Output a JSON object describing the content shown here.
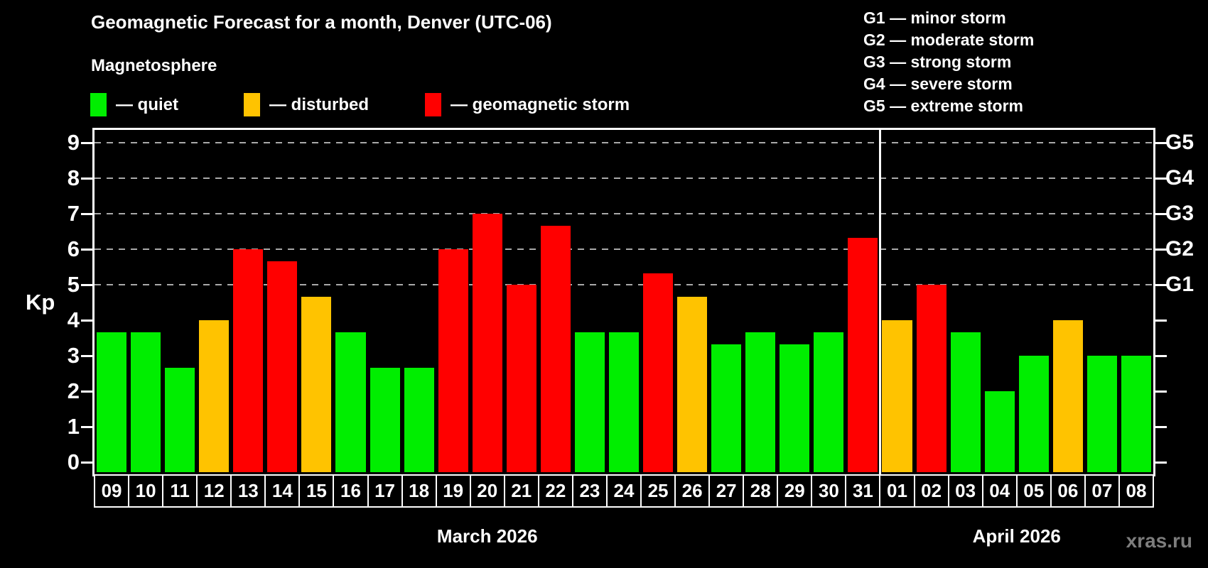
{
  "header": {
    "title": "Geomagnetic Forecast for a month, Denver (UTC-06)",
    "legend_title": "Magnetosphere",
    "legend_items": [
      {
        "label": "— quiet",
        "level": "quiet",
        "color": "#00ee00"
      },
      {
        "label": "— disturbed",
        "level": "disturbed",
        "color": "#ffc300"
      },
      {
        "label": "— geomagnetic storm",
        "level": "storm",
        "color": "#ff0000"
      }
    ],
    "g_scale_legend": [
      "G1 — minor storm",
      "G2 — moderate storm",
      "G3 — strong storm",
      "G4 — severe storm",
      "G5 — extreme storm"
    ]
  },
  "watermark": "xras.ru",
  "chart_data": {
    "type": "bar",
    "title": "Geomagnetic Forecast for a month, Denver (UTC-06)",
    "xlabel": "",
    "ylabel": "Kp",
    "ylim": [
      0,
      9
    ],
    "yticks": [
      0,
      1,
      2,
      3,
      4,
      5,
      6,
      7,
      8,
      9
    ],
    "grid_kp_levels": [
      5,
      6,
      7,
      8,
      9
    ],
    "grid_on": true,
    "legend_position": "top",
    "right_axis": [
      {
        "kp": 5,
        "label": "G1"
      },
      {
        "kp": 6,
        "label": "G2"
      },
      {
        "kp": 7,
        "label": "G3"
      },
      {
        "kp": 8,
        "label": "G4"
      },
      {
        "kp": 9,
        "label": "G5"
      }
    ],
    "level_colors": {
      "quiet": "#00ee00",
      "disturbed": "#ffc300",
      "storm": "#ff0000"
    },
    "months": [
      {
        "label": "March 2026",
        "start_index": 0,
        "days": 23
      },
      {
        "label": "April 2026",
        "start_index": 23,
        "days": 8
      }
    ],
    "days": [
      {
        "date": "09",
        "kp": 3.67,
        "level": "quiet"
      },
      {
        "date": "10",
        "kp": 3.67,
        "level": "quiet"
      },
      {
        "date": "11",
        "kp": 2.67,
        "level": "quiet"
      },
      {
        "date": "12",
        "kp": 4.0,
        "level": "disturbed"
      },
      {
        "date": "13",
        "kp": 6.0,
        "level": "storm"
      },
      {
        "date": "14",
        "kp": 5.67,
        "level": "storm"
      },
      {
        "date": "15",
        "kp": 4.67,
        "level": "disturbed"
      },
      {
        "date": "16",
        "kp": 3.67,
        "level": "quiet"
      },
      {
        "date": "17",
        "kp": 2.67,
        "level": "quiet"
      },
      {
        "date": "18",
        "kp": 2.67,
        "level": "quiet"
      },
      {
        "date": "19",
        "kp": 6.0,
        "level": "storm"
      },
      {
        "date": "20",
        "kp": 7.0,
        "level": "storm"
      },
      {
        "date": "21",
        "kp": 5.0,
        "level": "storm"
      },
      {
        "date": "22",
        "kp": 6.67,
        "level": "storm"
      },
      {
        "date": "23",
        "kp": 3.67,
        "level": "quiet"
      },
      {
        "date": "24",
        "kp": 3.67,
        "level": "quiet"
      },
      {
        "date": "25",
        "kp": 5.33,
        "level": "storm"
      },
      {
        "date": "26",
        "kp": 4.67,
        "level": "disturbed"
      },
      {
        "date": "27",
        "kp": 3.33,
        "level": "quiet"
      },
      {
        "date": "28",
        "kp": 3.67,
        "level": "quiet"
      },
      {
        "date": "29",
        "kp": 3.33,
        "level": "quiet"
      },
      {
        "date": "30",
        "kp": 3.67,
        "level": "quiet"
      },
      {
        "date": "31",
        "kp": 6.33,
        "level": "storm"
      },
      {
        "date": "01",
        "kp": 4.0,
        "level": "disturbed"
      },
      {
        "date": "02",
        "kp": 5.0,
        "level": "storm"
      },
      {
        "date": "03",
        "kp": 3.67,
        "level": "quiet"
      },
      {
        "date": "04",
        "kp": 2.0,
        "level": "quiet"
      },
      {
        "date": "05",
        "kp": 3.0,
        "level": "quiet"
      },
      {
        "date": "06",
        "kp": 4.0,
        "level": "disturbed"
      },
      {
        "date": "07",
        "kp": 3.0,
        "level": "quiet"
      },
      {
        "date": "08",
        "kp": 3.0,
        "level": "quiet"
      }
    ]
  }
}
